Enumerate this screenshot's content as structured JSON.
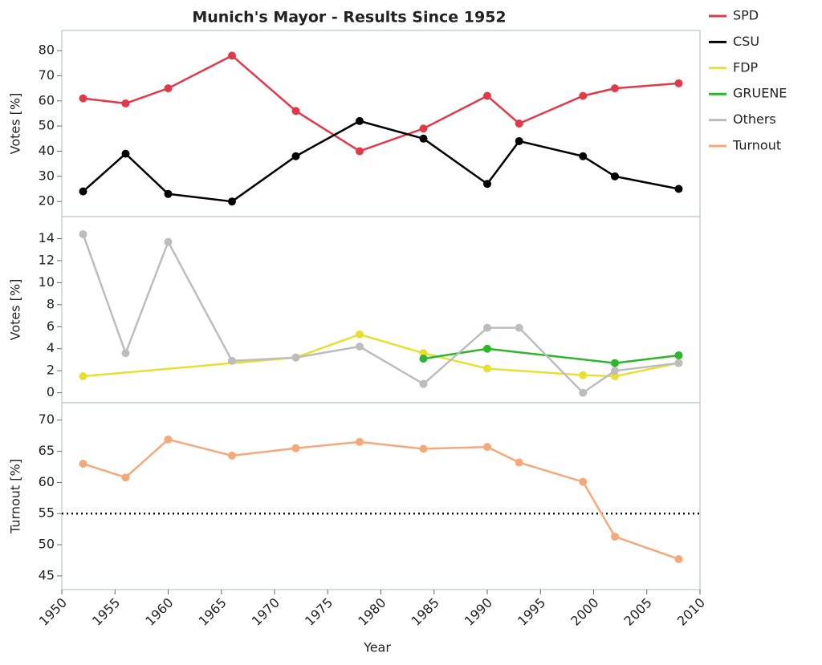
{
  "chart_data": [
    {
      "type": "line",
      "title": "Munich's Mayor - Results Since 1952",
      "ylabel": "Votes [%]",
      "x": [
        1952,
        1956,
        1960,
        1966,
        1972,
        1978,
        1984,
        1990,
        1993,
        1999,
        2002,
        2008
      ],
      "series": [
        {
          "name": "SPD",
          "color": "#e0394a",
          "values": [
            61,
            59,
            65,
            78,
            56,
            40,
            49,
            62,
            51,
            62,
            65,
            67
          ]
        },
        {
          "name": "CSU",
          "color": "#000000",
          "values": [
            24,
            39,
            23,
            20,
            38,
            52,
            45,
            27,
            44,
            38,
            30,
            25
          ]
        }
      ],
      "ylim": [
        14,
        88
      ],
      "yticks": [
        20,
        30,
        40,
        50,
        60,
        70,
        80
      ]
    },
    {
      "type": "line",
      "ylabel": "Votes [%]",
      "x": [
        1952,
        1956,
        1960,
        1966,
        1972,
        1978,
        1984,
        1990,
        1993,
        1999,
        2002,
        2008
      ],
      "series": [
        {
          "name": "FDP",
          "color": "#e8e030",
          "x": [
            1952,
            1972,
            1978,
            1984,
            1990,
            1999,
            2002,
            2008
          ],
          "values": [
            1.5,
            3.2,
            5.3,
            3.6,
            2.2,
            1.6,
            1.5,
            2.7
          ]
        },
        {
          "name": "GRUENE",
          "color": "#2db52d",
          "x": [
            1984,
            1990,
            2002,
            2008
          ],
          "values": [
            3.1,
            4.0,
            2.7,
            3.4
          ]
        },
        {
          "name": "Others",
          "color": "#bdbdbd",
          "values": [
            14.4,
            3.6,
            13.7,
            2.9,
            3.2,
            4.2,
            0.8,
            5.9,
            5.9,
            0,
            2.0,
            2.7
          ]
        }
      ],
      "ylim": [
        -0.9,
        16
      ],
      "yticks": [
        0,
        2,
        4,
        6,
        8,
        10,
        12,
        14
      ]
    },
    {
      "type": "line",
      "ylabel": "Turnout [%]",
      "xlabel": "Year",
      "x": [
        1952,
        1956,
        1960,
        1966,
        1972,
        1978,
        1984,
        1990,
        1993,
        1999,
        2002,
        2008
      ],
      "series": [
        {
          "name": "Turnout",
          "color": "#f5a97a",
          "values": [
            63.0,
            60.8,
            66.9,
            64.3,
            65.5,
            66.5,
            65.4,
            65.7,
            63.2,
            60.1,
            51.3,
            47.7
          ]
        }
      ],
      "hline": 55,
      "ylim": [
        42.8,
        72.8
      ],
      "yticks": [
        45,
        50,
        55,
        60,
        65,
        70
      ],
      "xlim": [
        1950,
        2010
      ],
      "xticks": [
        1950,
        1955,
        1960,
        1965,
        1970,
        1975,
        1980,
        1985,
        1990,
        1995,
        2000,
        2005,
        2010
      ]
    }
  ]
}
